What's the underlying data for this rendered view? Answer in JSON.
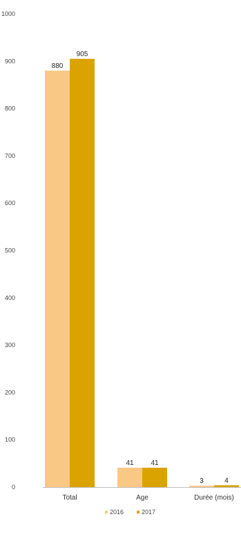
{
  "chart_data": {
    "type": "bar",
    "categories": [
      "Total",
      "Age",
      "Durée (mois)"
    ],
    "series": [
      {
        "name": "2016",
        "values": [
          880,
          41,
          3
        ],
        "color": "#fac885"
      },
      {
        "name": "2017",
        "values": [
          905,
          41,
          4
        ],
        "color": "#dba300"
      }
    ],
    "ylim": [
      0,
      1000
    ],
    "yticks": [
      0,
      100,
      200,
      300,
      400,
      500,
      600,
      700,
      800,
      900,
      1000
    ],
    "grid": false,
    "legend_position": "bottom-center",
    "data_labels": true
  }
}
